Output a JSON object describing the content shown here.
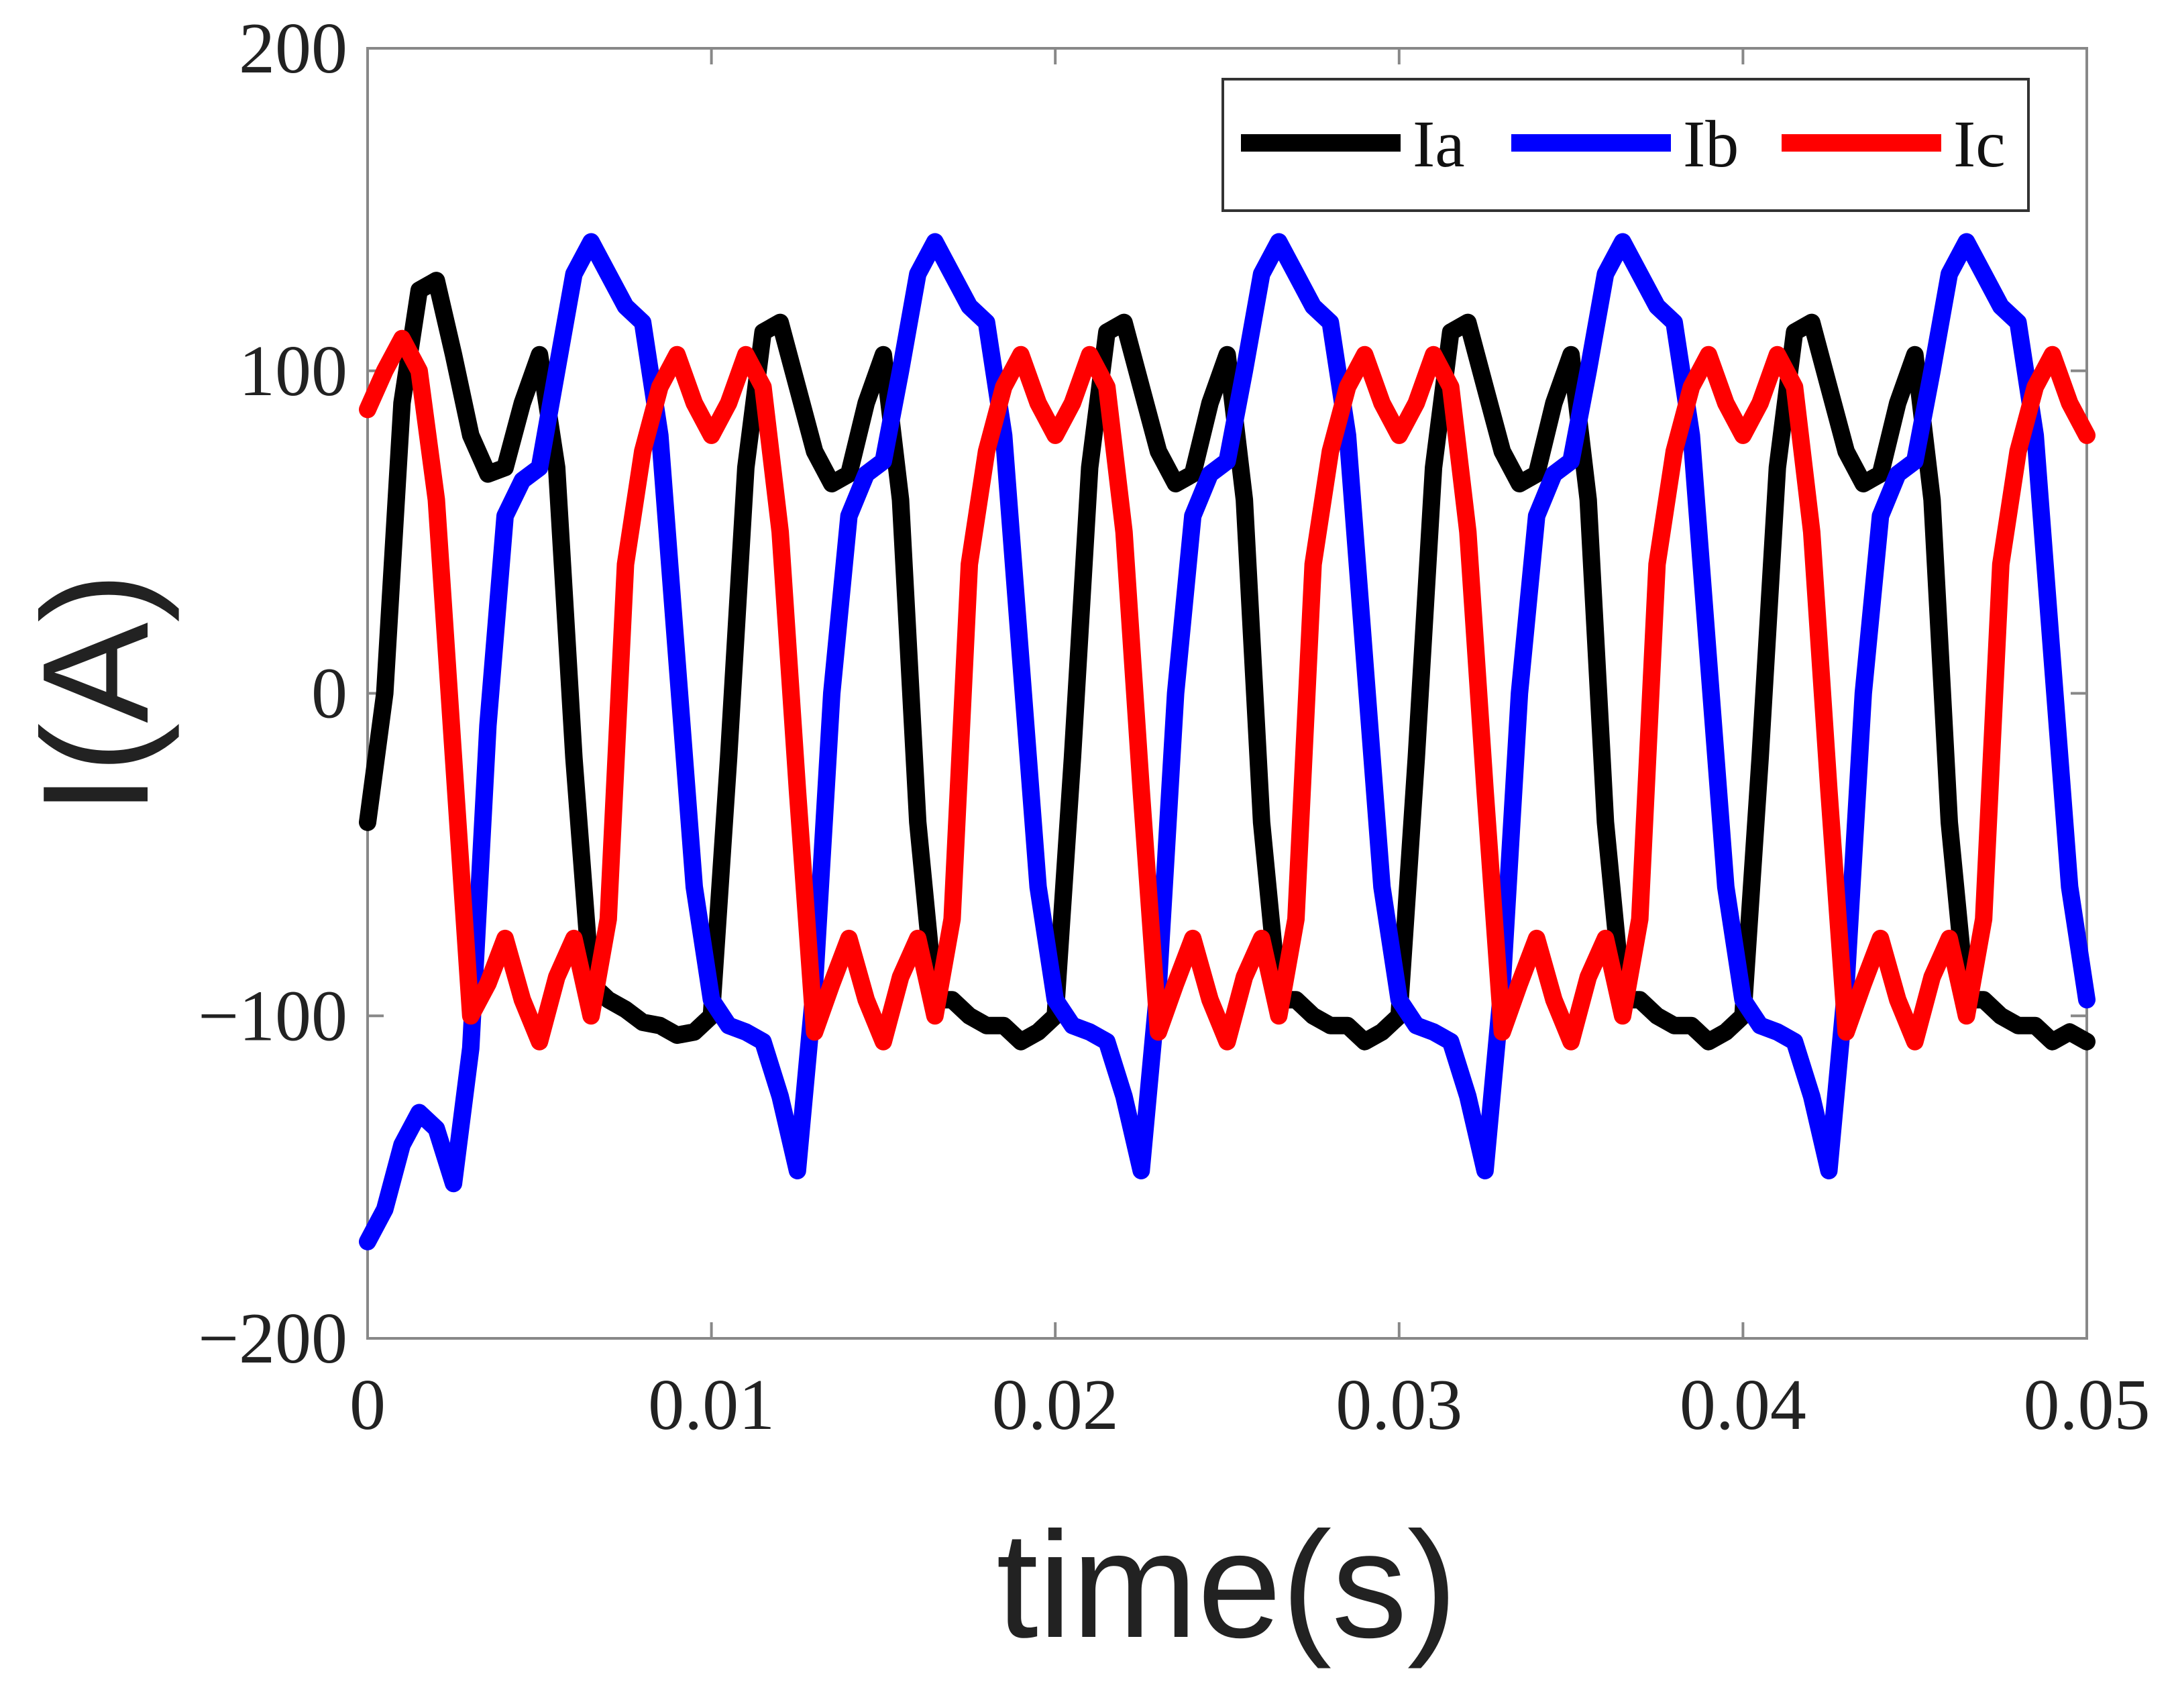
{
  "chart_data": {
    "type": "line",
    "xlabel": "time(s)",
    "ylabel": "I(A)",
    "x": [
      0,
      0.0005,
      0.001,
      0.0015,
      0.002,
      0.0025,
      0.003,
      0.0035,
      0.004,
      0.0045,
      0.005,
      0.0055,
      0.006,
      0.0065,
      0.007,
      0.0075,
      0.008,
      0.0085,
      0.009,
      0.0095,
      0.01,
      0.0105,
      0.011,
      0.0115,
      0.012,
      0.0125,
      0.013,
      0.0135,
      0.014,
      0.0145,
      0.015,
      0.0155,
      0.016,
      0.0165,
      0.017,
      0.0175,
      0.018,
      0.0185,
      0.019,
      0.0195,
      0.02,
      0.0205,
      0.021,
      0.0215,
      0.022,
      0.0225,
      0.023,
      0.0235,
      0.024,
      0.0245,
      0.025,
      0.0255,
      0.026,
      0.0265,
      0.027,
      0.0275,
      0.028,
      0.0285,
      0.029,
      0.0295,
      0.03,
      0.0305,
      0.031,
      0.0315,
      0.032,
      0.0325,
      0.033,
      0.0335,
      0.034,
      0.0345,
      0.035,
      0.0355,
      0.036,
      0.0365,
      0.037,
      0.0375,
      0.038,
      0.0385,
      0.039,
      0.0395,
      0.04,
      0.0405,
      0.041,
      0.0415,
      0.042,
      0.0425,
      0.043,
      0.0435,
      0.044,
      0.0445,
      0.045,
      0.0455,
      0.046,
      0.0465,
      0.047,
      0.0475,
      0.048,
      0.0485,
      0.049,
      0.0495,
      0.05
    ],
    "series": [
      {
        "name": "Ia",
        "color": "#000000",
        "values": [
          -40,
          0,
          90,
          125,
          128,
          105,
          80,
          68,
          70,
          90,
          105,
          70,
          -20,
          -90,
          -95,
          -98,
          -102,
          -103,
          -106,
          -105,
          -100,
          -20,
          70,
          112,
          115,
          95,
          75,
          65,
          68,
          90,
          105,
          60,
          -40,
          -95,
          -95,
          -100,
          -103,
          -103,
          -108,
          -105,
          -100,
          -20,
          70,
          112,
          115,
          95,
          75,
          65,
          68,
          90,
          105,
          60,
          -40,
          -95,
          -95,
          -100,
          -103,
          -103,
          -108,
          -105,
          -100,
          -20,
          70,
          112,
          115,
          95,
          75,
          65,
          68,
          90,
          105,
          60,
          -40,
          -95,
          -95,
          -100,
          -103,
          -103,
          -108,
          -105,
          -100,
          -20,
          70,
          112,
          115,
          95,
          75,
          65,
          68,
          90,
          105,
          60,
          -40,
          -95,
          -95,
          -100,
          -103,
          -103,
          -108,
          -105,
          -108
        ]
      },
      {
        "name": "Ib",
        "color": "#0000ff",
        "values": [
          -170,
          -160,
          -140,
          -130,
          -135,
          -152,
          -110,
          -10,
          55,
          66,
          70,
          100,
          130,
          140,
          130,
          120,
          115,
          80,
          10,
          -60,
          -95,
          -103,
          -105,
          -108,
          -125,
          -148,
          -90,
          0,
          55,
          68,
          72,
          100,
          130,
          140,
          130,
          120,
          115,
          80,
          10,
          -60,
          -95,
          -103,
          -105,
          -108,
          -125,
          -148,
          -90,
          0,
          55,
          68,
          72,
          100,
          130,
          140,
          130,
          120,
          115,
          80,
          10,
          -60,
          -95,
          -103,
          -105,
          -108,
          -125,
          -148,
          -90,
          0,
          55,
          68,
          72,
          100,
          130,
          140,
          130,
          120,
          115,
          80,
          10,
          -60,
          -95,
          -103,
          -105,
          -108,
          -125,
          -148,
          -90,
          0,
          55,
          68,
          72,
          100,
          130,
          140,
          130,
          120,
          115,
          80,
          10,
          -60,
          -95
        ]
      },
      {
        "name": "Ic",
        "color": "#ff0000",
        "values": [
          88,
          100,
          110,
          100,
          60,
          -20,
          -100,
          -90,
          -76,
          -95,
          -108,
          -88,
          -76,
          -100,
          -70,
          40,
          75,
          95,
          105,
          90,
          80,
          90,
          105,
          95,
          50,
          -30,
          -105,
          -90,
          -76,
          -95,
          -108,
          -88,
          -76,
          -100,
          -70,
          40,
          75,
          95,
          105,
          90,
          80,
          90,
          105,
          95,
          50,
          -30,
          -105,
          -90,
          -76,
          -95,
          -108,
          -88,
          -76,
          -100,
          -70,
          40,
          75,
          95,
          105,
          90,
          80,
          90,
          105,
          95,
          50,
          -30,
          -105,
          -90,
          -76,
          -95,
          -108,
          -88,
          -76,
          -100,
          -70,
          40,
          75,
          95,
          105,
          90,
          80,
          90,
          105,
          95,
          50,
          -30,
          -105,
          -90,
          -76,
          -95,
          -108,
          -88,
          -76,
          -100,
          -70,
          40,
          75,
          95,
          105,
          90,
          80
        ]
      }
    ],
    "xlim": [
      0,
      0.05
    ],
    "xticks": [
      0,
      0.01,
      0.02,
      0.03,
      0.04,
      0.05
    ],
    "ylim": [
      -200,
      200
    ],
    "yticks": [
      {
        "value": -200,
        "label": "−200"
      },
      {
        "value": -100,
        "label": "−100"
      },
      0,
      100,
      200
    ],
    "grid": false,
    "legend": "upper right"
  }
}
